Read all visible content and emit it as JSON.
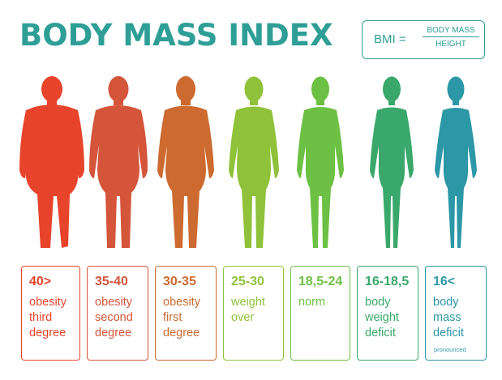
{
  "title": "BODY MASS INDEX",
  "formula": {
    "lhs": "BMI =",
    "numerator": "BODY MASS",
    "denominator": "HEIGHT"
  },
  "categories": [
    {
      "range": "40>",
      "lines": [
        "obesity",
        "third",
        "degree"
      ],
      "color": "#e8442c"
    },
    {
      "range": "35-40",
      "lines": [
        "obesity",
        "second",
        "degree"
      ],
      "color": "#d4553a"
    },
    {
      "range": "30-35",
      "lines": [
        "obesity",
        "first",
        "degree"
      ],
      "color": "#cc6a30"
    },
    {
      "range": "25-30",
      "lines": [
        "weight",
        "over"
      ],
      "color": "#8fc23a"
    },
    {
      "range": "18,5-24",
      "lines": [
        "norm"
      ],
      "color": "#6cc043"
    },
    {
      "range": "16-18,5",
      "lines": [
        "body",
        "weight",
        "deficit"
      ],
      "color": "#3aa86a"
    },
    {
      "range": "16<",
      "lines": [
        "body",
        "mass",
        "deficit"
      ],
      "color": "#2c97a6",
      "note": "pronounced"
    }
  ]
}
